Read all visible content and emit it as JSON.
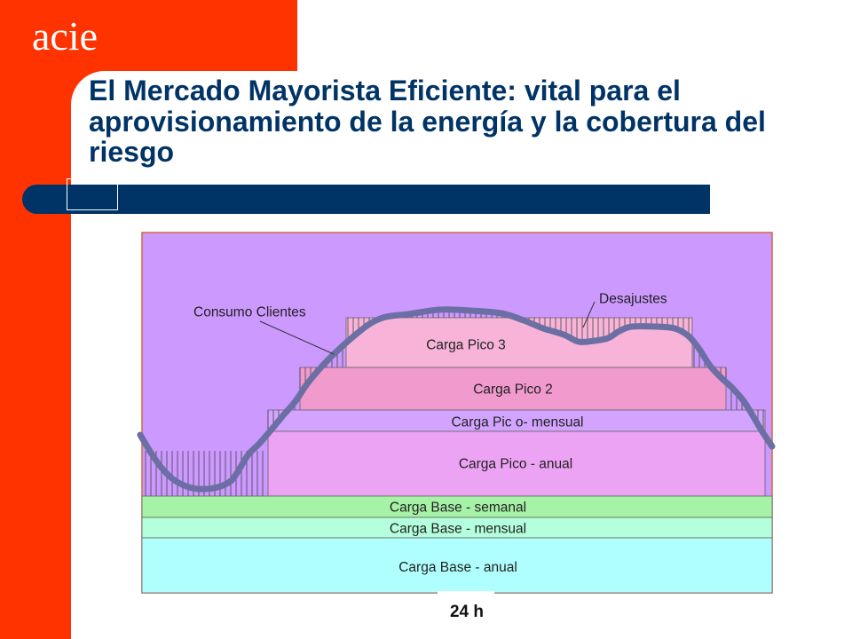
{
  "brand": {
    "logo_text": "acie"
  },
  "colors": {
    "accent": "#FF3300",
    "navy": "#003366"
  },
  "slide": {
    "title": "El Mercado Mayorista Eficiente: vital para el aprovisionamiento de la energía y la cobertura del riesgo"
  },
  "diagram": {
    "background_color": "#CC99FF",
    "layers": [
      {
        "label": "Carga Pico 3",
        "color": "#F8B4D8"
      },
      {
        "label": "Carga Pico 2",
        "color": "#F09ACD"
      },
      {
        "label": "Carga Pic o- mensual",
        "color": "#D3A4FF"
      },
      {
        "label": "Carga Pico - anual",
        "color": "#ECA3F3"
      },
      {
        "label": "Carga Base - semanal",
        "color": "#A6F2A6"
      },
      {
        "label": "Carga Base - mensual",
        "color": "#B4FFDC"
      },
      {
        "label": "Carga Base - anual",
        "color": "#B0FFFF"
      }
    ],
    "consumption_curve": {
      "label": "Consumo Clientes",
      "color": "#6B6FA3"
    },
    "mismatch": {
      "label": "Desajustes"
    },
    "time_axis_label": "24 h"
  }
}
